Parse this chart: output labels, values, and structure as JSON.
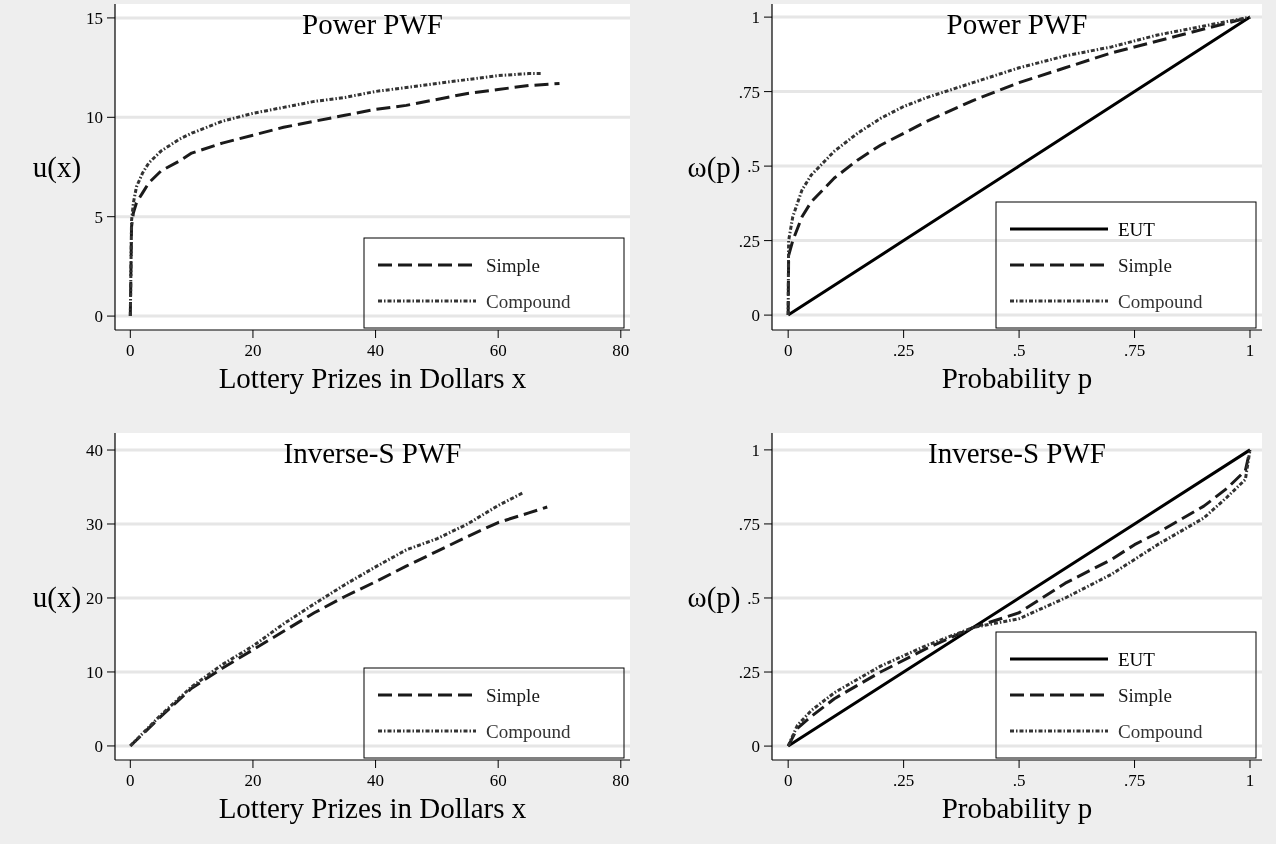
{
  "chart_data": [
    {
      "type": "line",
      "title": "Power PWF",
      "xlabel": "Lottery Prizes in Dollars x",
      "ylabel": "u(x)",
      "xlim": [
        -2.5,
        81.5
      ],
      "ylim": [
        -0.7,
        15.7
      ],
      "xticks": [
        0,
        20,
        40,
        60,
        80
      ],
      "yticks": [
        0,
        5,
        10,
        15
      ],
      "grid": "y",
      "legend": "bottom right",
      "series": [
        {
          "name": "Simple",
          "color": "#1a1a1a",
          "line_style": "dashed",
          "x": [
            0,
            0.2,
            0.5,
            1,
            2,
            3,
            5,
            8,
            10,
            15,
            20,
            25,
            30,
            35,
            40,
            45,
            50,
            55,
            60,
            65,
            70
          ],
          "values": [
            0,
            4.5,
            5.2,
            5.7,
            6.2,
            6.7,
            7.3,
            7.8,
            8.2,
            8.7,
            9.1,
            9.5,
            9.8,
            10.1,
            10.4,
            10.6,
            10.9,
            11.2,
            11.4,
            11.6,
            11.7
          ]
        },
        {
          "name": "Compound",
          "color": "#333333",
          "line_style": "dotted",
          "x": [
            0,
            0.2,
            0.5,
            1,
            2,
            3,
            5,
            8,
            10,
            15,
            20,
            25,
            30,
            35,
            40,
            45,
            50,
            55,
            60,
            65,
            67
          ],
          "values": [
            0,
            4.8,
            5.7,
            6.5,
            7.2,
            7.7,
            8.3,
            8.9,
            9.2,
            9.8,
            10.2,
            10.5,
            10.8,
            11,
            11.3,
            11.5,
            11.7,
            11.9,
            12.1,
            12.2,
            12.2
          ]
        }
      ]
    },
    {
      "type": "line",
      "title": "Power PWF",
      "xlabel": "Probability p",
      "ylabel": "ω(p)",
      "xlim": [
        -0.035,
        1.026
      ],
      "ylim": [
        -0.05,
        1.044
      ],
      "xticks": [
        0,
        {
          "value": 0.25,
          "label": ".25"
        },
        {
          "value": 0.5,
          "label": ".5"
        },
        {
          "value": 0.75,
          "label": ".75"
        },
        1
      ],
      "yticks": [
        0,
        {
          "value": 0.25,
          "label": ".25"
        },
        {
          "value": 0.5,
          "label": ".5"
        },
        {
          "value": 0.75,
          "label": ".75"
        },
        1
      ],
      "grid": "y",
      "legend": "bottom right",
      "series": [
        {
          "name": "EUT",
          "color": "#000000",
          "line_style": "solid",
          "x": [
            0,
            0.25,
            0.5,
            0.75,
            1
          ],
          "values": [
            0,
            0.25,
            0.5,
            0.75,
            1
          ]
        },
        {
          "name": "Simple",
          "color": "#1a1a1a",
          "line_style": "dashed",
          "x": [
            0,
            0.001,
            0.01,
            0.03,
            0.05,
            0.1,
            0.15,
            0.2,
            0.25,
            0.3,
            0.4,
            0.5,
            0.6,
            0.7,
            0.8,
            0.9,
            1
          ],
          "values": [
            0,
            0.2,
            0.25,
            0.33,
            0.38,
            0.46,
            0.52,
            0.57,
            0.61,
            0.65,
            0.72,
            0.78,
            0.83,
            0.88,
            0.92,
            0.96,
            1
          ]
        },
        {
          "name": "Compound",
          "color": "#333333",
          "line_style": "dotted",
          "x": [
            0,
            0.001,
            0.01,
            0.03,
            0.05,
            0.1,
            0.15,
            0.2,
            0.25,
            0.3,
            0.4,
            0.5,
            0.6,
            0.7,
            0.8,
            0.9,
            1
          ],
          "values": [
            0,
            0.25,
            0.33,
            0.42,
            0.47,
            0.55,
            0.61,
            0.66,
            0.7,
            0.73,
            0.78,
            0.83,
            0.87,
            0.9,
            0.94,
            0.97,
            1
          ]
        }
      ]
    },
    {
      "type": "line",
      "title": "Inverse-S PWF",
      "xlabel": "Lottery Prizes in Dollars x",
      "ylabel": "u(x)",
      "xlim": [
        -2.5,
        81.5
      ],
      "ylim": [
        -1.9,
        42.3
      ],
      "xticks": [
        0,
        20,
        40,
        60,
        80
      ],
      "yticks": [
        0,
        10,
        20,
        30,
        40
      ],
      "grid": "y",
      "legend": "bottom right",
      "series": [
        {
          "name": "Simple",
          "color": "#1a1a1a",
          "line_style": "dashed",
          "x": [
            0,
            5,
            10,
            15,
            20,
            25,
            30,
            35,
            40,
            45,
            50,
            55,
            60,
            65,
            68
          ],
          "values": [
            0,
            4,
            7.8,
            10.5,
            13,
            15.5,
            18,
            20.2,
            22.2,
            24.3,
            26.3,
            28.3,
            30.2,
            31.5,
            32.3
          ]
        },
        {
          "name": "Compound",
          "color": "#333333",
          "line_style": "dotted",
          "x": [
            0,
            5,
            10,
            15,
            20,
            25,
            30,
            35,
            40,
            45,
            50,
            55,
            60,
            64
          ],
          "values": [
            0,
            4.2,
            8,
            11,
            13.5,
            16.5,
            19.2,
            21.8,
            24.2,
            26.5,
            28,
            30,
            32.5,
            34.2
          ]
        }
      ]
    },
    {
      "type": "line",
      "title": "Inverse-S PWF",
      "xlabel": "Probability p",
      "ylabel": "ω(p)",
      "xlim": [
        -0.035,
        1.026
      ],
      "ylim": [
        -0.047,
        1.057
      ],
      "xticks": [
        0,
        {
          "value": 0.25,
          "label": ".25"
        },
        {
          "value": 0.5,
          "label": ".5"
        },
        {
          "value": 0.75,
          "label": ".75"
        },
        1
      ],
      "yticks": [
        0,
        {
          "value": 0.25,
          "label": ".25"
        },
        {
          "value": 0.5,
          "label": ".5"
        },
        {
          "value": 0.75,
          "label": ".75"
        },
        1
      ],
      "grid": "y",
      "legend": "bottom right",
      "series": [
        {
          "name": "EUT",
          "color": "#000000",
          "line_style": "solid",
          "x": [
            0,
            0.25,
            0.5,
            0.75,
            1
          ],
          "values": [
            0,
            0.25,
            0.5,
            0.75,
            1
          ]
        },
        {
          "name": "Simple",
          "color": "#1a1a1a",
          "line_style": "dashed",
          "x": [
            0,
            0.02,
            0.05,
            0.1,
            0.2,
            0.3,
            0.4,
            0.5,
            0.6,
            0.7,
            0.75,
            0.8,
            0.9,
            0.95,
            0.99,
            1
          ],
          "values": [
            0,
            0.06,
            0.1,
            0.16,
            0.25,
            0.33,
            0.4,
            0.45,
            0.55,
            0.63,
            0.68,
            0.72,
            0.81,
            0.87,
            0.93,
            1
          ]
        },
        {
          "name": "Compound",
          "color": "#333333",
          "line_style": "dotted",
          "x": [
            0,
            0.02,
            0.05,
            0.1,
            0.2,
            0.3,
            0.4,
            0.5,
            0.6,
            0.7,
            0.75,
            0.8,
            0.9,
            0.95,
            0.99,
            1
          ],
          "values": [
            0,
            0.07,
            0.12,
            0.18,
            0.27,
            0.34,
            0.4,
            0.43,
            0.5,
            0.58,
            0.63,
            0.68,
            0.77,
            0.84,
            0.9,
            1
          ]
        }
      ]
    }
  ]
}
